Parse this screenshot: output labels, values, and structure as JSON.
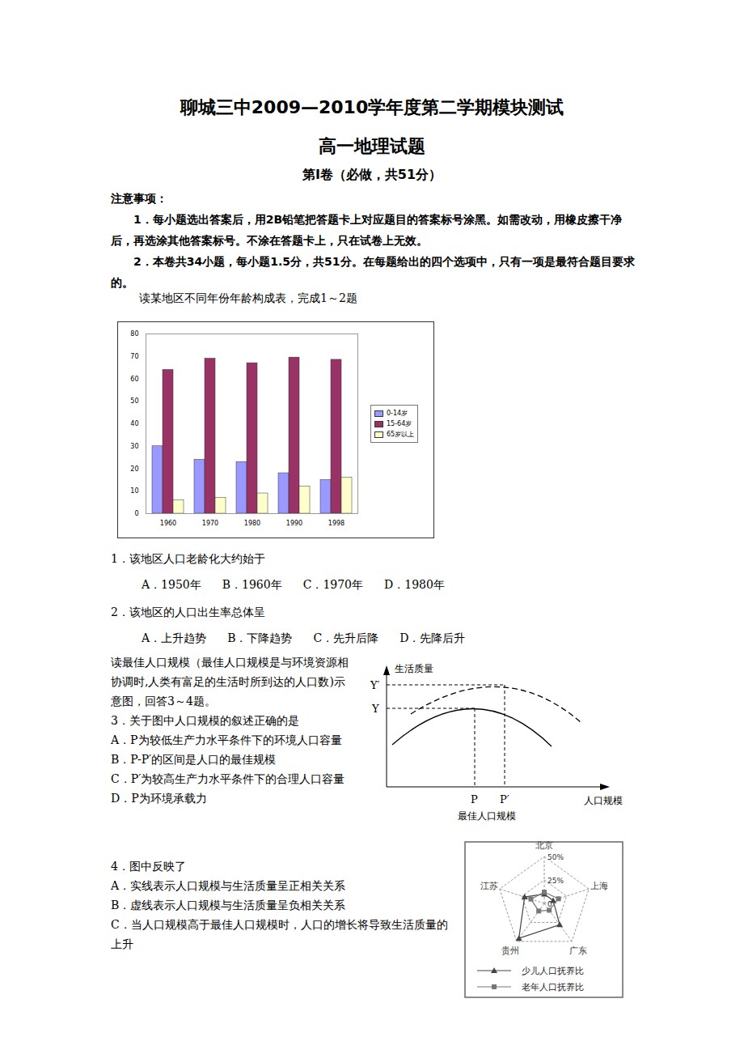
{
  "header": {
    "title": "聊城三中2009—2010学年度第二学期模块测试",
    "subtitle": "高一地理试题",
    "part": "第Ⅰ卷（必做，共51分）"
  },
  "notes": {
    "heading": "注意事项：",
    "items": [
      "1．每小题选出答案后，用2B铅笔把答题卡上对应题目的答案标号涂黑。如需改动，用橡皮擦干净后，再选涂其他答案标号。不涂在答题卡上，只在试卷上无效。",
      "2．本卷共34小题，每小题1.5分，共51分。在每题给出的四个选项中，只有一项是最符合题目要求的。"
    ]
  },
  "group1": {
    "intro": "读某地区不同年份年龄构成表，完成1～2题",
    "questions": [
      {
        "stem": "1．该地区人口老龄化大约始于",
        "options": [
          "A．1950年",
          "B．1960年",
          "C．1970年",
          "D．1980年"
        ]
      },
      {
        "stem": "2．该地区的人口出生率总体呈",
        "options": [
          "A．上升趋势",
          "B．下降趋势",
          "C．先升后降",
          "D．先降后升"
        ]
      }
    ]
  },
  "group2": {
    "intro": "读最佳人口规模（最佳人口规模是与环境资源相协调时,人类有富足的生活时所到达的人口数)示意图，回答3～4题。",
    "questions": [
      {
        "stem": "3．关于图中人口规模的叙述正确的是",
        "options": [
          "A．P为较低生产力水平条件下的环境人口容量",
          "B．P-P′的区间是人口的最佳规模",
          "C．P′为较高生产力水平条件下的合理人口容量",
          "D．P为环境承载力"
        ]
      },
      {
        "stem": "4．图中反映了",
        "options": [
          "A．实线表示人口规模与生活质量呈正相关关系",
          "B．虚线表示人口规模与生活质量呈负相关关系",
          "C．当人口规模高于最佳人口规模时，人口的增长将导致生活质量的上升"
        ]
      }
    ]
  },
  "diagram": {
    "y_label": "生活质量",
    "x_label": "人口规模",
    "x_note": "最佳人口规模",
    "x_marks": [
      "P",
      "P′"
    ],
    "y_marks": [
      "Y",
      "Y′"
    ]
  },
  "chart_data": [
    {
      "type": "bar",
      "categories": [
        "1960",
        "1970",
        "1980",
        "1990",
        "1998"
      ],
      "series": [
        {
          "name": "0-14岁",
          "color": "#9999ff",
          "values": [
            30,
            24,
            23,
            18,
            15
          ]
        },
        {
          "name": "15-64岁",
          "color": "#993366",
          "values": [
            64,
            69,
            67,
            69.5,
            68.5
          ]
        },
        {
          "name": "65岁以上",
          "color": "#ffffcc",
          "values": [
            6,
            7,
            9,
            12,
            16
          ]
        }
      ],
      "ylim": [
        0,
        80
      ],
      "yticks": [
        0,
        10,
        20,
        30,
        40,
        50,
        60,
        70,
        80
      ],
      "grid": false,
      "legend": "right"
    },
    {
      "type": "radar",
      "categories": [
        "北京",
        "上海",
        "广东",
        "贵州",
        "江苏"
      ],
      "series": [
        {
          "name": "少儿人口抚养比",
          "color": "#444444",
          "marker": "triangle",
          "values": [
            10,
            10,
            28,
            46,
            22
          ]
        },
        {
          "name": "老年人口抚养比",
          "color": "#777777",
          "marker": "square",
          "values": [
            12,
            16,
            9,
            10,
            15
          ]
        }
      ],
      "ylim": [
        0,
        50
      ],
      "yticks": [
        0,
        {
          "value": 25,
          "label": "25%"
        },
        {
          "value": 50,
          "label": "50%"
        }
      ],
      "legend": "bottom"
    }
  ]
}
